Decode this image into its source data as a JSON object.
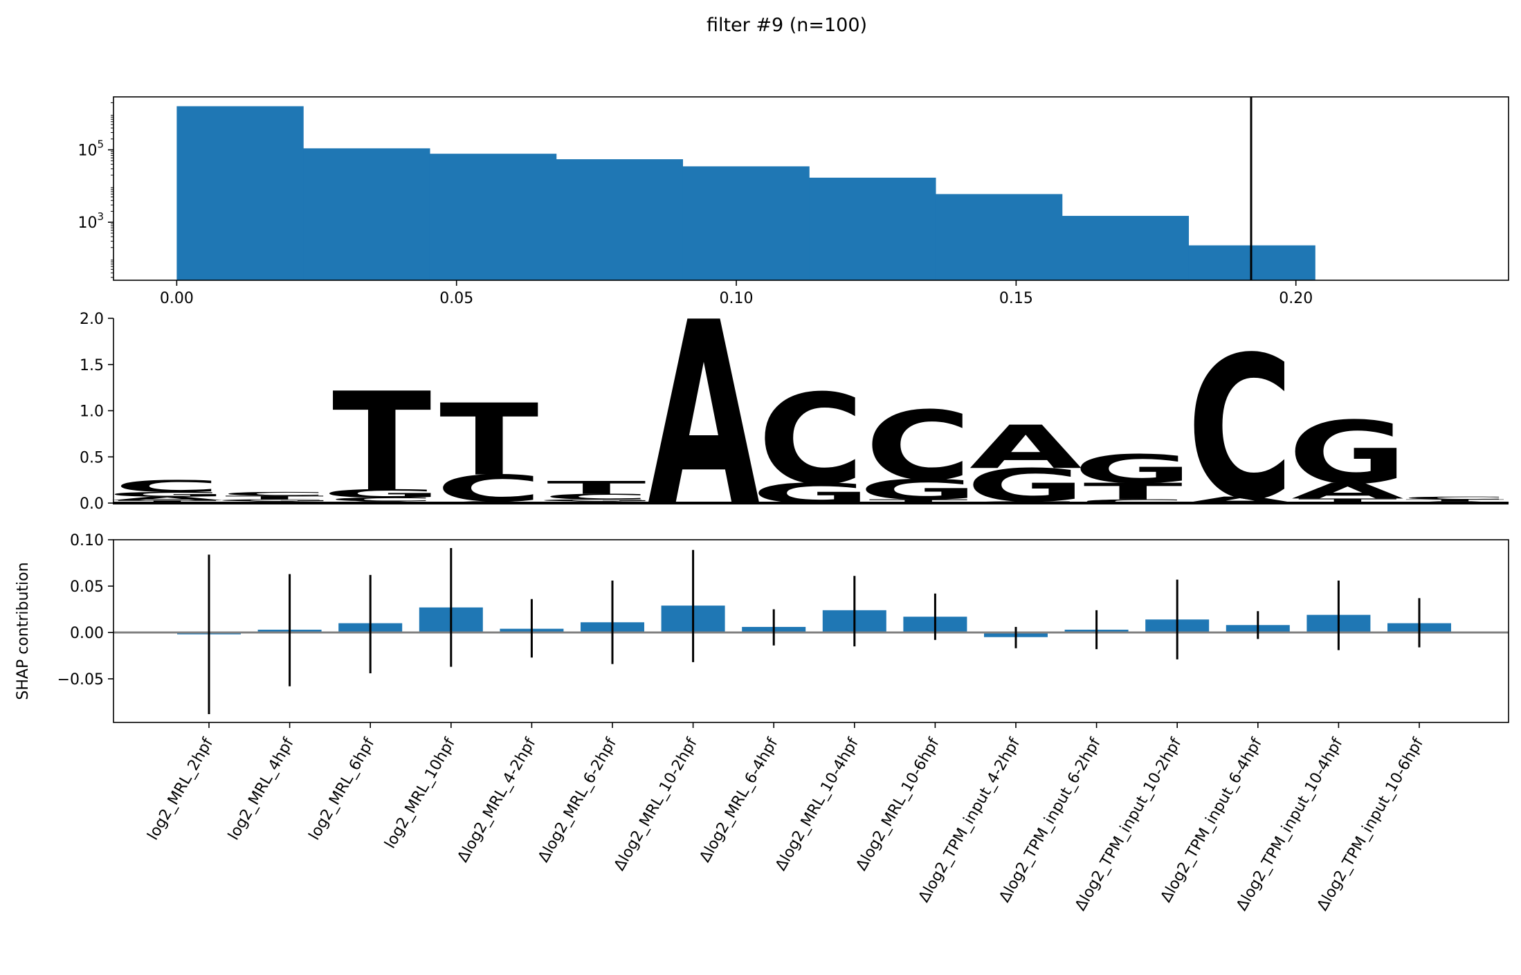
{
  "chart_data": [
    {
      "type": "bar",
      "subtype": "histogram",
      "title": "filter #9 (n=100)",
      "y_scale": "log",
      "xlim": [
        -0.0113,
        0.238
      ],
      "ylim": [
        25,
        2900000
      ],
      "x_ticks": [
        0.0,
        0.05,
        0.1,
        0.15,
        0.2
      ],
      "x_tick_labels": [
        "0.00",
        "0.05",
        "0.10",
        "0.15",
        "0.20"
      ],
      "y_ticks": [
        1000,
        100000
      ],
      "y_tick_labels": [
        {
          "base": "10",
          "exp": "3"
        },
        {
          "base": "10",
          "exp": "5"
        }
      ],
      "bin_edges": [
        0.0,
        0.0226,
        0.0452,
        0.0678,
        0.0904,
        0.113,
        0.1356,
        0.1582,
        0.1808,
        0.2034,
        0.226
      ],
      "counts": [
        1600000,
        110000,
        78000,
        55000,
        35000,
        17000,
        6000,
        1500,
        230,
        25
      ],
      "threshold_line": 0.192,
      "color": "#1f77b4",
      "grid": false
    },
    {
      "type": "sequence-logo",
      "ylim": [
        0,
        2.0
      ],
      "y_ticks": [
        0.0,
        0.5,
        1.0,
        1.5,
        2.0
      ],
      "y_tick_labels": [
        "0.0",
        "0.5",
        "1.0",
        "1.5",
        "2.0"
      ],
      "letter_colors": {
        "A": "#109648",
        "C": "#255c99",
        "G": "#f7b32b",
        "T": "#d62839"
      },
      "positions": [
        [
          {
            "letter": "T",
            "h": 0.03
          },
          {
            "letter": "A",
            "h": 0.04
          },
          {
            "letter": "G",
            "h": 0.05
          },
          {
            "letter": "C",
            "h": 0.13
          }
        ],
        [
          {
            "letter": "A",
            "h": 0.02
          },
          {
            "letter": "G",
            "h": 0.02
          },
          {
            "letter": "T",
            "h": 0.04
          },
          {
            "letter": "C",
            "h": 0.04
          }
        ],
        [
          {
            "letter": "A",
            "h": 0.02
          },
          {
            "letter": "C",
            "h": 0.04
          },
          {
            "letter": "G",
            "h": 0.09
          },
          {
            "letter": "T",
            "h": 1.07
          }
        ],
        [
          {
            "letter": "A",
            "h": 0.02
          },
          {
            "letter": "C",
            "h": 0.29
          },
          {
            "letter": "T",
            "h": 0.78
          }
        ],
        [
          {
            "letter": "A",
            "h": 0.02
          },
          {
            "letter": "G",
            "h": 0.02
          },
          {
            "letter": "C",
            "h": 0.06
          },
          {
            "letter": "T",
            "h": 0.14
          }
        ],
        [
          {
            "letter": "A",
            "h": 2.0
          }
        ],
        [
          {
            "letter": "G",
            "h": 0.22
          },
          {
            "letter": "C",
            "h": 0.98
          }
        ],
        [
          {
            "letter": "T",
            "h": 0.04
          },
          {
            "letter": "G",
            "h": 0.22
          },
          {
            "letter": "C",
            "h": 0.75
          }
        ],
        [
          {
            "letter": "C",
            "h": 0.02
          },
          {
            "letter": "G",
            "h": 0.36
          },
          {
            "letter": "A",
            "h": 0.47
          }
        ],
        [
          {
            "letter": "C",
            "h": 0.04
          },
          {
            "letter": "T",
            "h": 0.18
          },
          {
            "letter": "G",
            "h": 0.31
          }
        ],
        [
          {
            "letter": "A",
            "h": 0.07
          },
          {
            "letter": "C",
            "h": 1.55
          }
        ],
        [
          {
            "letter": "T",
            "h": 0.05
          },
          {
            "letter": "A",
            "h": 0.17
          },
          {
            "letter": "G",
            "h": 0.68
          }
        ],
        [
          {
            "letter": "A",
            "h": 0.02
          },
          {
            "letter": "T",
            "h": 0.02
          },
          {
            "letter": "C",
            "h": 0.03
          }
        ]
      ]
    },
    {
      "type": "bar",
      "ylabel": "SHAP contribution",
      "ylim": [
        -0.097,
        0.1
      ],
      "y_ticks": [
        -0.05,
        0.0,
        0.05,
        0.1
      ],
      "y_tick_labels": [
        "−0.05",
        "0.00",
        "0.05",
        "0.10"
      ],
      "color": "#1f77b4",
      "zero_line_color": "#808080",
      "categories": [
        "log2_MRL_2hpf",
        "log2_MRL_4hpf",
        "log2_MRL_6hpf",
        "log2_MRL_10hpf",
        "Δlog2_MRL_4-2hpf",
        "Δlog2_MRL_6-2hpf",
        "Δlog2_MRL_10-2hpf",
        "Δlog2_MRL_6-4hpf",
        "Δlog2_MRL_10-4hpf",
        "Δlog2_MRL_10-6hpf",
        "Δlog2_TPM_input_4-2hpf",
        "Δlog2_TPM_input_6-2hpf",
        "Δlog2_TPM_input_10-2hpf",
        "Δlog2_TPM_input_6-4hpf",
        "Δlog2_TPM_input_10-4hpf",
        "Δlog2_TPM_input_10-6hpf"
      ],
      "values": [
        -0.002,
        0.003,
        0.01,
        0.027,
        0.004,
        0.011,
        0.029,
        0.006,
        0.024,
        0.017,
        -0.005,
        0.003,
        0.014,
        0.008,
        0.019,
        0.01
      ],
      "error_low": [
        -0.088,
        -0.058,
        -0.044,
        -0.037,
        -0.027,
        -0.034,
        -0.032,
        -0.014,
        -0.015,
        -0.008,
        -0.017,
        -0.018,
        -0.029,
        -0.007,
        -0.019,
        -0.016
      ],
      "error_high": [
        0.084,
        0.063,
        0.062,
        0.091,
        0.036,
        0.056,
        0.089,
        0.025,
        0.061,
        0.042,
        0.006,
        0.024,
        0.057,
        0.023,
        0.056,
        0.037
      ]
    }
  ]
}
